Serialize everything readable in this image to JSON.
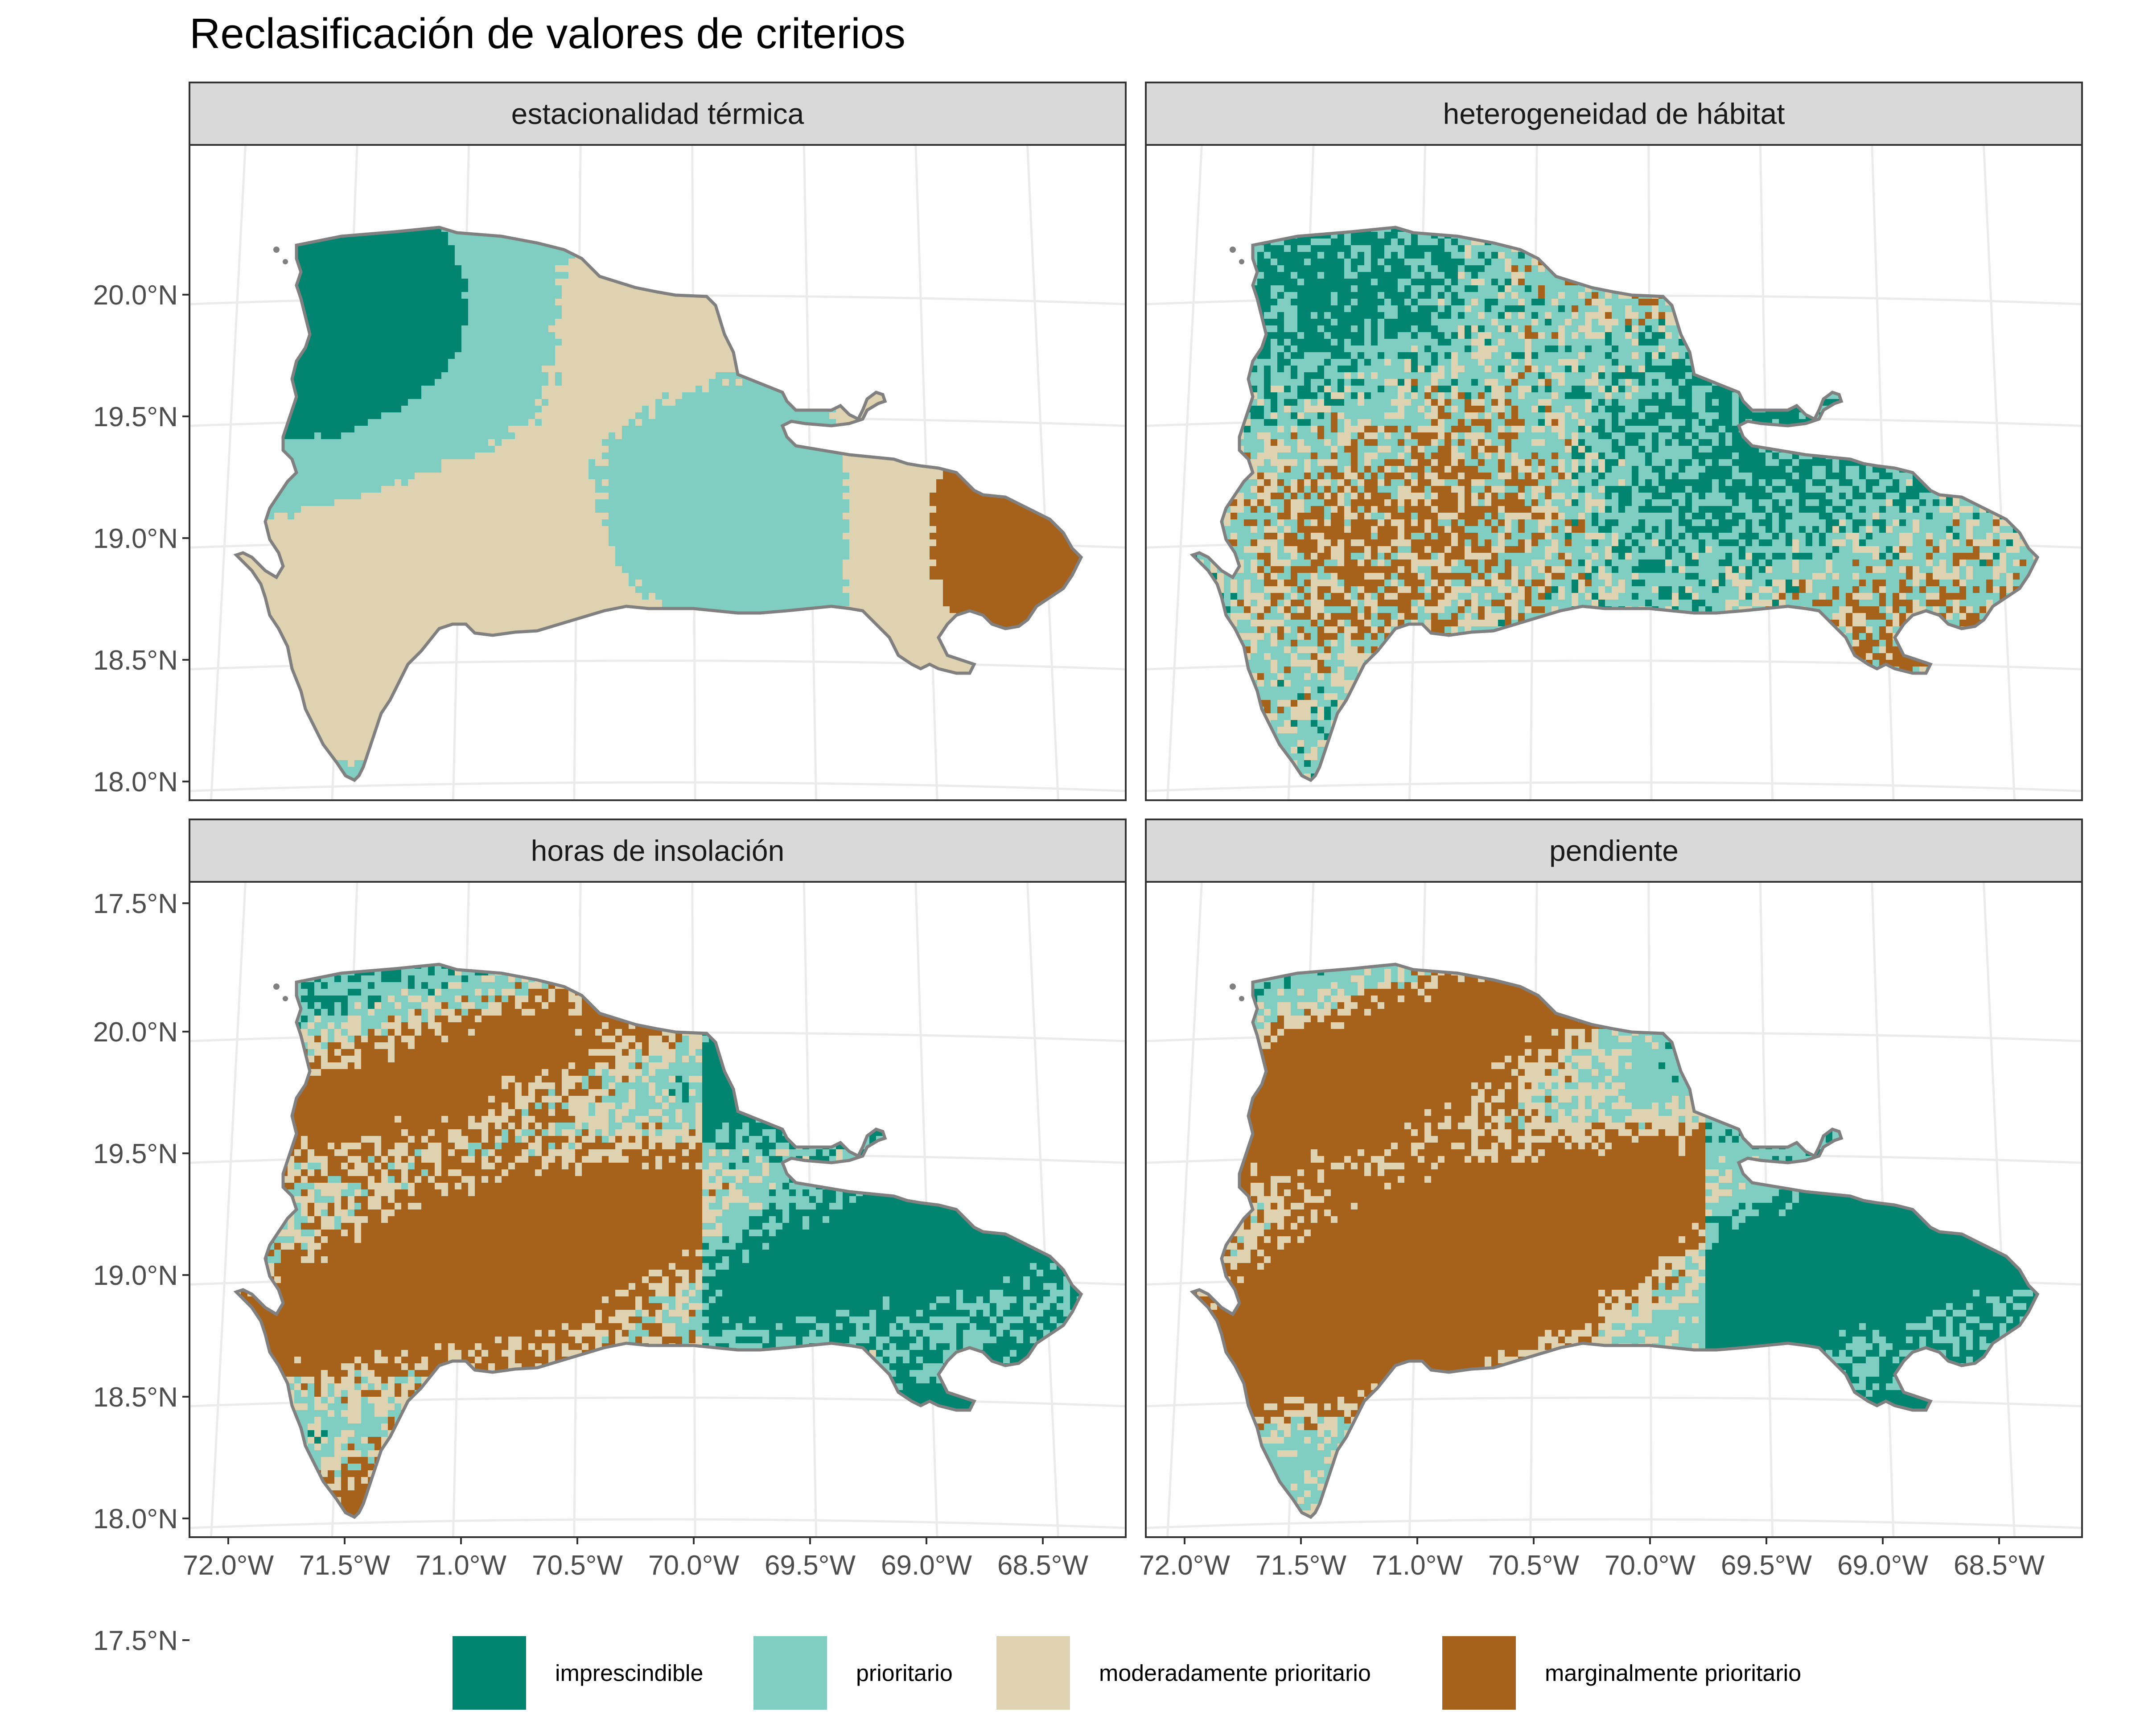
{
  "title": "Reclasificación de valores de criterios",
  "legend": [
    {
      "label": "imprescindible",
      "color": "#018571"
    },
    {
      "label": "prioritario",
      "color": "#80CDC1"
    },
    {
      "label": "moderadamente prioritario",
      "color": "#DFD2B1"
    },
    {
      "label": "marginalmente prioritario",
      "color": "#A6611A"
    }
  ],
  "panels": [
    {
      "label": "estacionalidad térmica",
      "pattern": "blobs",
      "seed": 11
    },
    {
      "label": "heterogeneidad de hábitat",
      "pattern": "speckle",
      "seed": 23
    },
    {
      "label": "horas de insolación",
      "pattern": "ridges",
      "seed": 37
    },
    {
      "label": "pendiente",
      "pattern": "ridges2",
      "seed": 53
    }
  ],
  "axes": {
    "lat_labels": [
      "20.0°N",
      "19.5°N",
      "19.0°N",
      "18.5°N",
      "18.0°N",
      "17.5°N"
    ],
    "lat_values": [
      20.0,
      19.5,
      19.0,
      18.5,
      18.0,
      17.5
    ],
    "lon_labels": [
      "72.0°W",
      "71.5°W",
      "71.0°W",
      "70.5°W",
      "70.0°W",
      "69.5°W",
      "69.0°W",
      "68.5°W"
    ],
    "lon_values": [
      -72.0,
      -71.5,
      -71.0,
      -70.5,
      -70.0,
      -69.5,
      -69.0,
      -68.5
    ]
  },
  "colors": {
    "panel_border": "#333333",
    "strip_fill": "#D9D9D9",
    "grid": "#EBEBEB",
    "island_outline": "#808080"
  }
}
